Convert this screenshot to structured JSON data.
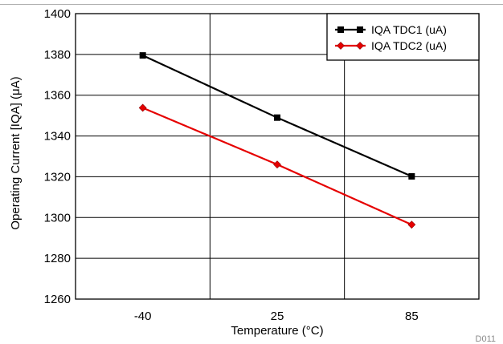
{
  "figure_id": "D011",
  "chart_data": {
    "type": "line",
    "title": "",
    "xlabel": "Temperature (°C)",
    "ylabel": "Operating Current [IQA] (μA)",
    "categories": [
      "-40",
      "25",
      "85"
    ],
    "ylim": [
      1260,
      1400
    ],
    "yticks": [
      1260,
      1280,
      1300,
      1320,
      1340,
      1360,
      1380,
      1400
    ],
    "grid": true,
    "legend_position": "top-right",
    "series": [
      {
        "name": "IQA TDC1 (uA)",
        "values": [
          1379.5,
          1349.0,
          1320.2
        ],
        "color": "#000000",
        "marker": "square"
      },
      {
        "name": "IQA TDC2 (uA)",
        "values": [
          1353.8,
          1326.0,
          1296.5
        ],
        "color": "#e60000",
        "marker": "diamond"
      }
    ]
  }
}
